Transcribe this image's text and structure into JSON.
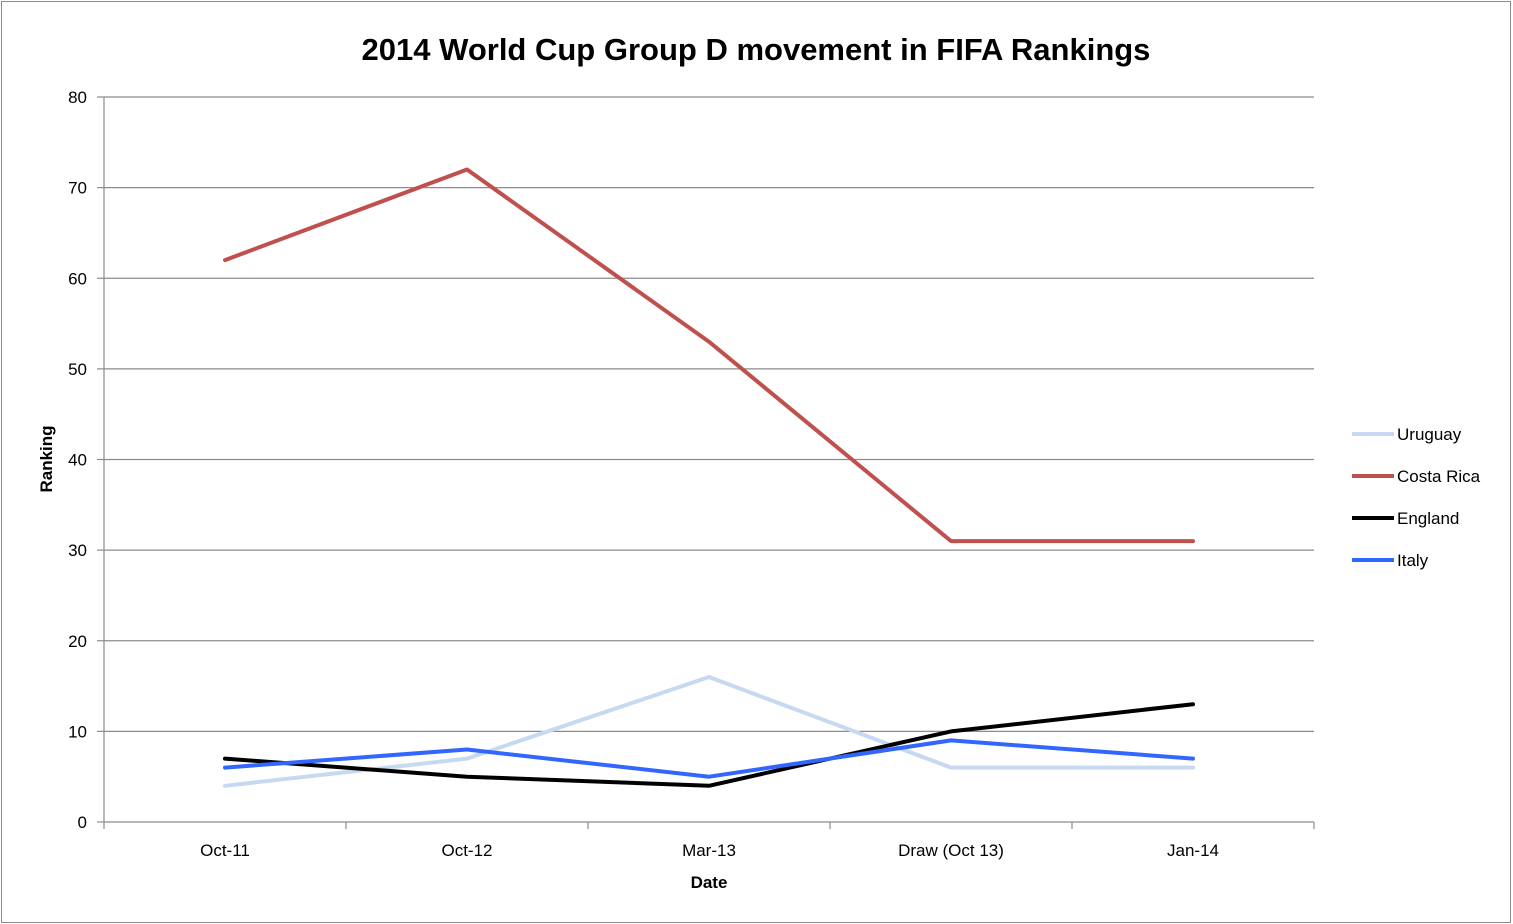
{
  "chart_data": {
    "type": "line",
    "title": "2014 World Cup Group D movement in FIFA Rankings",
    "xlabel": "Date",
    "ylabel": "Ranking",
    "ylim": [
      0,
      80
    ],
    "yticks": [
      0,
      10,
      20,
      30,
      40,
      50,
      60,
      70,
      80
    ],
    "grid": true,
    "legend_position": "right",
    "categories": [
      "Oct-11",
      "Oct-12",
      "Mar-13",
      "Draw (Oct 13)",
      "Jan-14"
    ],
    "series": [
      {
        "name": "Uruguay",
        "color": "#c6d9f1",
        "values": [
          4,
          7,
          16,
          6,
          6
        ]
      },
      {
        "name": "Costa Rica",
        "color": "#c0504d",
        "values": [
          62,
          72,
          53,
          31,
          31
        ]
      },
      {
        "name": "England",
        "color": "#000000",
        "values": [
          7,
          5,
          4,
          10,
          13
        ]
      },
      {
        "name": "Italy",
        "color": "#3366ff",
        "values": [
          6,
          8,
          5,
          9,
          7
        ]
      }
    ]
  }
}
